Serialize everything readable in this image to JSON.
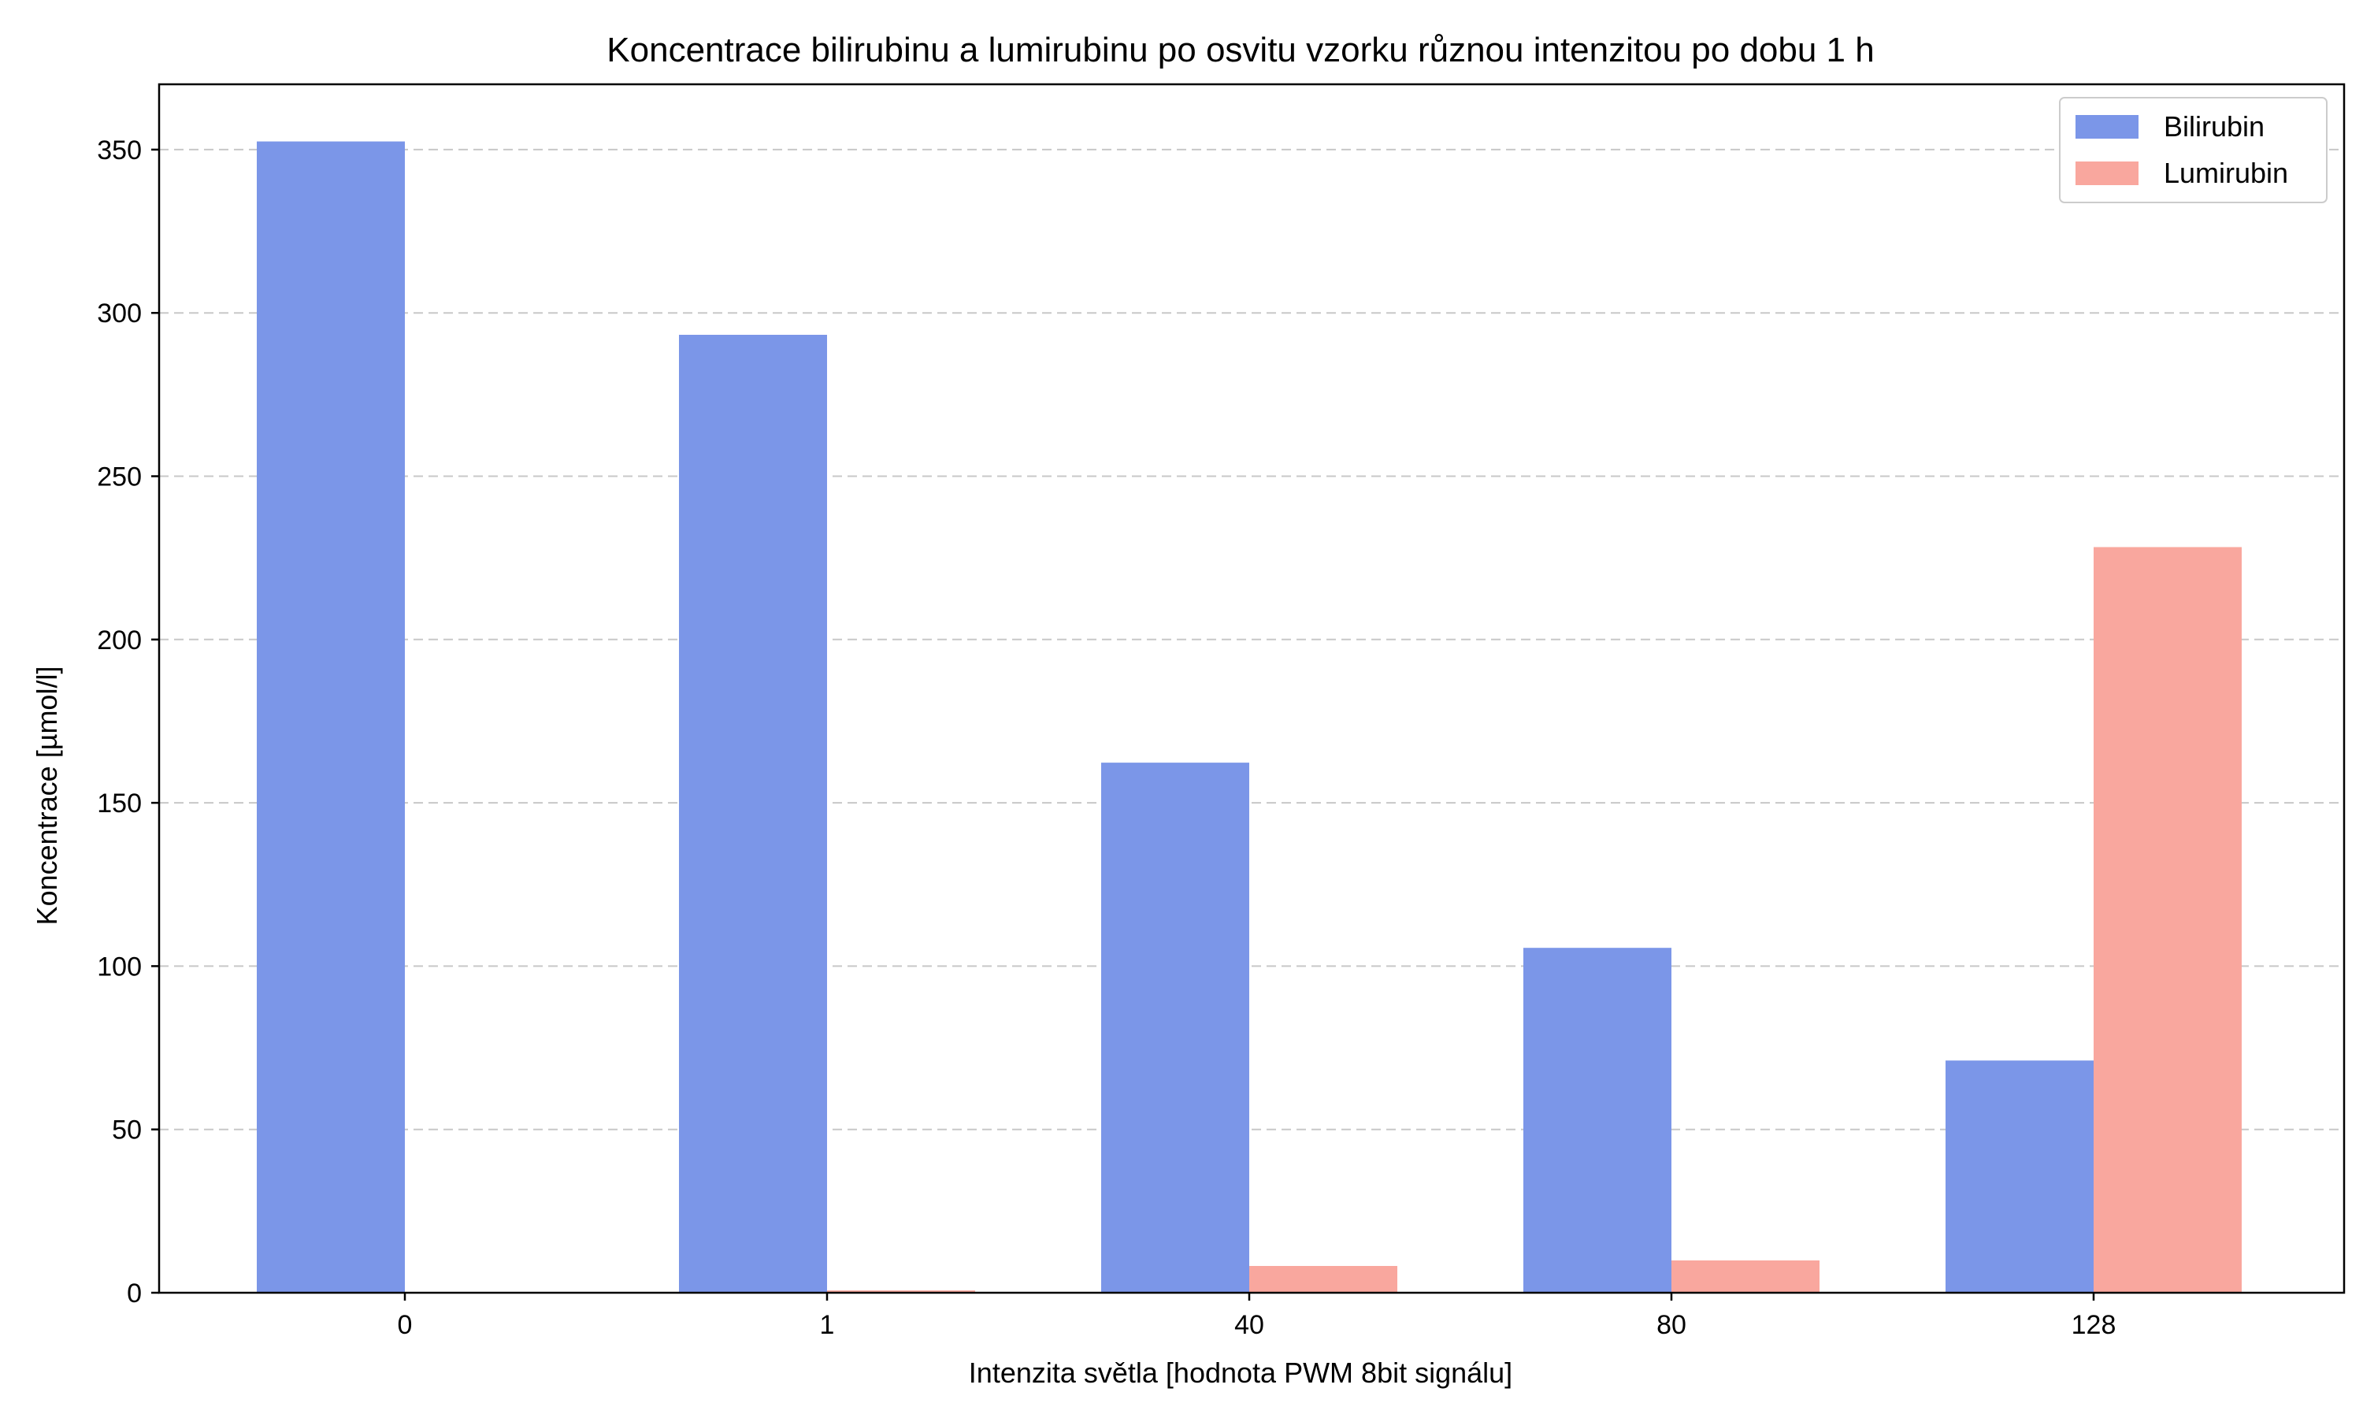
{
  "chart_data": {
    "type": "bar",
    "title": "Koncentrace bilirubinu a lumirubinu po osvitu vzorku různou intenzitou po dobu 1 h",
    "xlabel": "Intenzita světla [hodnota PWM 8bit signálu]",
    "ylabel": "Koncentrace [µmol/l]",
    "categories": [
      "0",
      "1",
      "40",
      "80",
      "128"
    ],
    "ylim": [
      0,
      370
    ],
    "yticks": [
      0,
      50,
      100,
      150,
      200,
      250,
      300,
      350
    ],
    "grid": "y-dashed",
    "legend_position": "top-right",
    "series": [
      {
        "name": "Bilirubin",
        "color": "#7b96e8",
        "values": [
          352.5,
          293.3,
          162.3,
          105.6,
          71.1
        ]
      },
      {
        "name": "Lumirubin",
        "color": "#f9a79e",
        "values": [
          0,
          0.7,
          8.2,
          9.9,
          228.3
        ]
      }
    ]
  }
}
